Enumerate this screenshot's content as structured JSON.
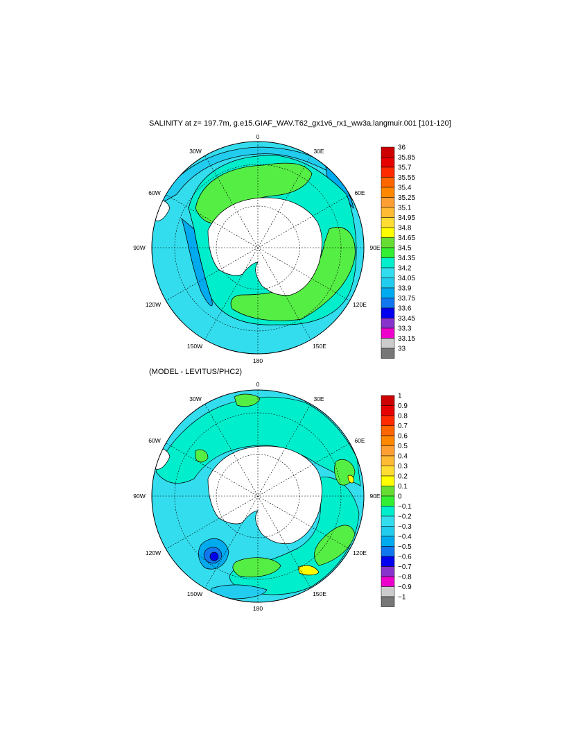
{
  "panel1": {
    "title": "SALINITY at z= 197.7m, g.e15.GIAF_WAV.T62_gx1v6_rx1_ww3a.langmuir.001 [101-120]",
    "lon_labels": {
      "n": "0",
      "ne": "30E",
      "e1": "60E",
      "e": "90E",
      "se1": "120E",
      "se": "150E",
      "s": "180",
      "sw": "150W",
      "sw1": "120W",
      "w": "90W",
      "nw1": "60W",
      "nw": "30W"
    },
    "colorbar": {
      "labels": [
        "36",
        "35.85",
        "35.7",
        "35.55",
        "35.4",
        "35.25",
        "35.1",
        "34.95",
        "34.8",
        "34.65",
        "34.5",
        "34.35",
        "34.2",
        "34.05",
        "33.9",
        "33.75",
        "33.6",
        "33.45",
        "33.3",
        "33.15",
        "33"
      ],
      "colors": [
        "#cc0000",
        "#e60000",
        "#ff2a00",
        "#ff6600",
        "#ff8800",
        "#ff9f33",
        "#ffbb33",
        "#ffdd33",
        "#ffff00",
        "#66dd33",
        "#33ee33",
        "#00eecc",
        "#33ddee",
        "#22ccee",
        "#00aaee",
        "#1177ee",
        "#0000ee",
        "#8833cc",
        "#ee00cc",
        "#cccccc",
        "#777777"
      ]
    }
  },
  "panel2": {
    "title": "(MODEL - LEVITUS/PHC2)",
    "lon_labels": {
      "n": "0",
      "ne": "30E",
      "e1": "60E",
      "e": "90E",
      "se1": "120E",
      "se": "150E",
      "s": "180",
      "sw": "150W",
      "sw1": "120W",
      "w": "90W",
      "nw1": "60W",
      "nw": "30W"
    },
    "colorbar": {
      "labels": [
        "1",
        "0.9",
        "0.8",
        "0.7",
        "0.6",
        "0.5",
        "0.4",
        "0.3",
        "0.2",
        "0.1",
        "0",
        "−0.1",
        "−0.2",
        "−0.3",
        "−0.4",
        "−0.5",
        "−0.6",
        "−0.7",
        "−0.8",
        "−0.9",
        "−1"
      ],
      "colors": [
        "#cc0000",
        "#e60000",
        "#ff2a00",
        "#ff6600",
        "#ff8800",
        "#ff9f33",
        "#ffbb33",
        "#ffdd33",
        "#ffff00",
        "#66dd33",
        "#33ee33",
        "#00eecc",
        "#33ddee",
        "#22ccee",
        "#00aaee",
        "#1177ee",
        "#0000ee",
        "#8833cc",
        "#ee00cc",
        "#cccccc",
        "#777777"
      ]
    }
  },
  "colors": {
    "ocean_base": "#33ddee",
    "green": "#55ee44",
    "light_cyan": "#00eecc",
    "mid_blue": "#22ccee",
    "blue": "#00aaee",
    "land": "#ffffff"
  }
}
